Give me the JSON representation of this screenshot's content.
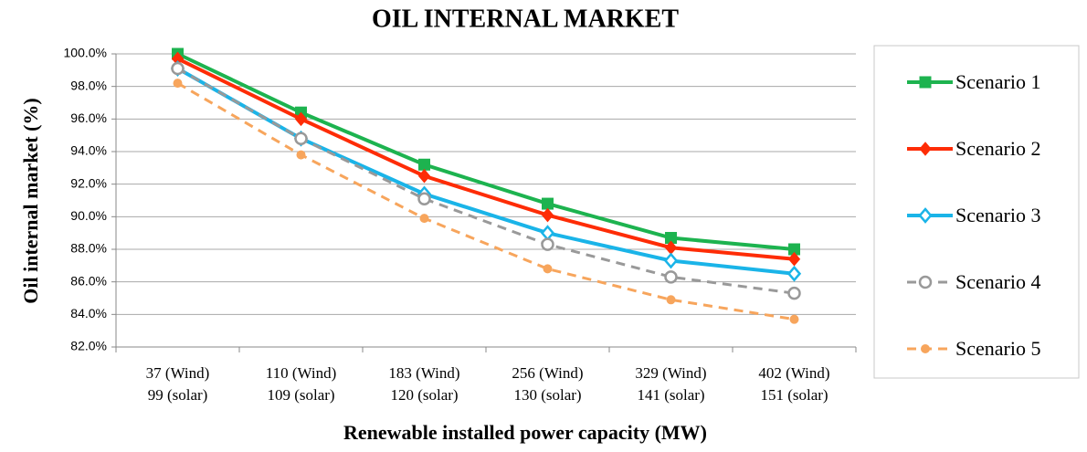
{
  "chart_data": {
    "type": "line",
    "title": "OIL INTERNAL MARKET",
    "x_label": "Renewable installed power capacity (MW)",
    "y_label": "Oil internal market (%)",
    "categories": [
      [
        "37 (Wind)",
        "99 (solar)"
      ],
      [
        "110 (Wind)",
        "109 (solar)"
      ],
      [
        "183 (Wind)",
        "120 (solar)"
      ],
      [
        "256 (Wind)",
        "130 (solar)"
      ],
      [
        "329 (Wind)",
        "141 (solar)"
      ],
      [
        "402 (Wind)",
        "151 (solar)"
      ]
    ],
    "ylim": [
      82,
      100
    ],
    "yticks": [
      {
        "value": 82,
        "label": "82.0%"
      },
      {
        "value": 84,
        "label": "84.0%"
      },
      {
        "value": 86,
        "label": "86.0%"
      },
      {
        "value": 88,
        "label": "88.0%"
      },
      {
        "value": 90,
        "label": "90.0%"
      },
      {
        "value": 92,
        "label": "92.0%"
      },
      {
        "value": 94,
        "label": "94.0%"
      },
      {
        "value": 96,
        "label": "96.0%"
      },
      {
        "value": 98,
        "label": "98.0%"
      },
      {
        "value": 100,
        "label": "100.0%"
      }
    ],
    "grid": true,
    "legend": "right",
    "series": [
      {
        "name": "Scenario 1",
        "color": "#1db34f",
        "marker": "square",
        "dash": false,
        "values": [
          100.0,
          96.4,
          93.2,
          90.8,
          88.7,
          88.0
        ]
      },
      {
        "name": "Scenario 2",
        "color": "#fe2c06",
        "marker": "diamond",
        "dash": false,
        "values": [
          99.7,
          96.0,
          92.5,
          90.1,
          88.1,
          87.4
        ]
      },
      {
        "name": "Scenario 3",
        "color": "#1ab4e8",
        "marker": "open-diamond",
        "dash": false,
        "values": [
          99.1,
          94.8,
          91.4,
          89.0,
          87.3,
          86.5
        ]
      },
      {
        "name": "Scenario 4",
        "color": "#999999",
        "marker": "open-circle",
        "dash": true,
        "values": [
          99.1,
          94.8,
          91.1,
          88.3,
          86.3,
          85.3
        ]
      },
      {
        "name": "Scenario 5",
        "color": "#f7a55c",
        "marker": "circle",
        "dash": true,
        "values": [
          98.2,
          93.8,
          89.9,
          86.8,
          84.9,
          83.7
        ]
      }
    ]
  }
}
